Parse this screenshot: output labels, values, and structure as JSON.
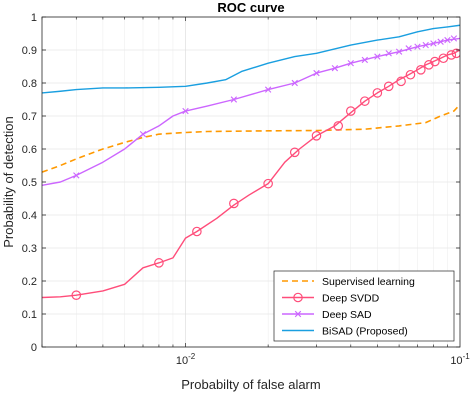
{
  "chart_data": {
    "type": "line",
    "title": "ROC curve",
    "xlabel": "Probabilty of false alarm",
    "ylabel": "Probability of detection",
    "xscale": "log",
    "xlim": [
      0.003,
      0.1
    ],
    "ylim": [
      0,
      1
    ],
    "xticks": [
      {
        "value": 0.01,
        "base": "10",
        "exp": "-2"
      },
      {
        "value": 0.1,
        "base": "10",
        "exp": "-1"
      }
    ],
    "yticks": [
      0,
      0.1,
      0.2,
      0.3,
      0.4,
      0.5,
      0.6,
      0.7,
      0.8,
      0.9,
      1
    ],
    "grid": true,
    "legend_position": "bottom-right",
    "series": [
      {
        "name": "Supervised learning",
        "color": "#ff9900",
        "style": "dashed",
        "marker": "none",
        "points": [
          [
            0.003,
            0.53
          ],
          [
            0.0035,
            0.55
          ],
          [
            0.004,
            0.57
          ],
          [
            0.005,
            0.6
          ],
          [
            0.006,
            0.62
          ],
          [
            0.007,
            0.635
          ],
          [
            0.008,
            0.645
          ],
          [
            0.01,
            0.65
          ],
          [
            0.012,
            0.653
          ],
          [
            0.02,
            0.655
          ],
          [
            0.03,
            0.656
          ],
          [
            0.045,
            0.66
          ],
          [
            0.06,
            0.67
          ],
          [
            0.075,
            0.68
          ],
          [
            0.085,
            0.7
          ],
          [
            0.095,
            0.715
          ],
          [
            0.1,
            0.735
          ]
        ]
      },
      {
        "name": "Deep SVDD",
        "color": "#ff4d7a",
        "style": "solid",
        "marker": "circle",
        "points": [
          [
            0.003,
            0.15
          ],
          [
            0.0035,
            0.152
          ],
          [
            0.004,
            0.157
          ],
          [
            0.005,
            0.17
          ],
          [
            0.006,
            0.19
          ],
          [
            0.007,
            0.24
          ],
          [
            0.008,
            0.255
          ],
          [
            0.009,
            0.27
          ],
          [
            0.01,
            0.33
          ],
          [
            0.011,
            0.35
          ],
          [
            0.013,
            0.39
          ],
          [
            0.015,
            0.43
          ],
          [
            0.017,
            0.46
          ],
          [
            0.02,
            0.495
          ],
          [
            0.023,
            0.56
          ],
          [
            0.026,
            0.6
          ],
          [
            0.03,
            0.64
          ],
          [
            0.035,
            0.67
          ],
          [
            0.04,
            0.71
          ],
          [
            0.045,
            0.745
          ],
          [
            0.05,
            0.77
          ],
          [
            0.055,
            0.79
          ],
          [
            0.06,
            0.81
          ],
          [
            0.065,
            0.825
          ],
          [
            0.07,
            0.84
          ],
          [
            0.075,
            0.855
          ],
          [
            0.08,
            0.865
          ],
          [
            0.085,
            0.875
          ],
          [
            0.09,
            0.885
          ],
          [
            0.095,
            0.89
          ],
          [
            0.1,
            0.9
          ]
        ],
        "marker_points": [
          [
            0.004,
            0.157
          ],
          [
            0.008,
            0.255
          ],
          [
            0.011,
            0.35
          ],
          [
            0.015,
            0.435
          ],
          [
            0.02,
            0.495
          ],
          [
            0.025,
            0.59
          ],
          [
            0.03,
            0.64
          ],
          [
            0.036,
            0.67
          ],
          [
            0.04,
            0.715
          ],
          [
            0.045,
            0.745
          ],
          [
            0.05,
            0.77
          ],
          [
            0.055,
            0.79
          ],
          [
            0.061,
            0.805
          ],
          [
            0.066,
            0.825
          ],
          [
            0.072,
            0.84
          ],
          [
            0.077,
            0.855
          ],
          [
            0.081,
            0.865
          ],
          [
            0.087,
            0.875
          ],
          [
            0.093,
            0.885
          ],
          [
            0.097,
            0.89
          ]
        ]
      },
      {
        "name": "Deep SAD",
        "color": "#cc66ff",
        "style": "solid",
        "marker": "x",
        "points": [
          [
            0.003,
            0.49
          ],
          [
            0.0035,
            0.5
          ],
          [
            0.004,
            0.52
          ],
          [
            0.005,
            0.56
          ],
          [
            0.006,
            0.6
          ],
          [
            0.007,
            0.645
          ],
          [
            0.008,
            0.67
          ],
          [
            0.009,
            0.7
          ],
          [
            0.01,
            0.715
          ],
          [
            0.012,
            0.73
          ],
          [
            0.015,
            0.75
          ],
          [
            0.02,
            0.78
          ],
          [
            0.025,
            0.8
          ],
          [
            0.03,
            0.83
          ],
          [
            0.035,
            0.845
          ],
          [
            0.04,
            0.86
          ],
          [
            0.05,
            0.88
          ],
          [
            0.06,
            0.895
          ],
          [
            0.07,
            0.91
          ],
          [
            0.08,
            0.92
          ],
          [
            0.09,
            0.93
          ],
          [
            0.1,
            0.935
          ]
        ],
        "marker_points": [
          [
            0.004,
            0.52
          ],
          [
            0.007,
            0.645
          ],
          [
            0.01,
            0.715
          ],
          [
            0.015,
            0.75
          ],
          [
            0.02,
            0.78
          ],
          [
            0.025,
            0.8
          ],
          [
            0.03,
            0.83
          ],
          [
            0.035,
            0.845
          ],
          [
            0.04,
            0.86
          ],
          [
            0.045,
            0.87
          ],
          [
            0.05,
            0.88
          ],
          [
            0.055,
            0.89
          ],
          [
            0.06,
            0.895
          ],
          [
            0.065,
            0.905
          ],
          [
            0.07,
            0.91
          ],
          [
            0.075,
            0.915
          ],
          [
            0.08,
            0.92
          ],
          [
            0.085,
            0.925
          ],
          [
            0.09,
            0.93
          ],
          [
            0.095,
            0.935
          ]
        ]
      },
      {
        "name": "BiSAD (Proposed)",
        "color": "#1a9fe0",
        "style": "solid",
        "marker": "none",
        "points": [
          [
            0.003,
            0.77
          ],
          [
            0.0035,
            0.775
          ],
          [
            0.004,
            0.78
          ],
          [
            0.005,
            0.785
          ],
          [
            0.006,
            0.785
          ],
          [
            0.008,
            0.787
          ],
          [
            0.01,
            0.79
          ],
          [
            0.012,
            0.8
          ],
          [
            0.014,
            0.81
          ],
          [
            0.016,
            0.835
          ],
          [
            0.02,
            0.86
          ],
          [
            0.025,
            0.88
          ],
          [
            0.03,
            0.89
          ],
          [
            0.04,
            0.915
          ],
          [
            0.05,
            0.93
          ],
          [
            0.06,
            0.94
          ],
          [
            0.07,
            0.955
          ],
          [
            0.08,
            0.965
          ],
          [
            0.09,
            0.97
          ],
          [
            0.1,
            0.975
          ]
        ]
      }
    ]
  }
}
